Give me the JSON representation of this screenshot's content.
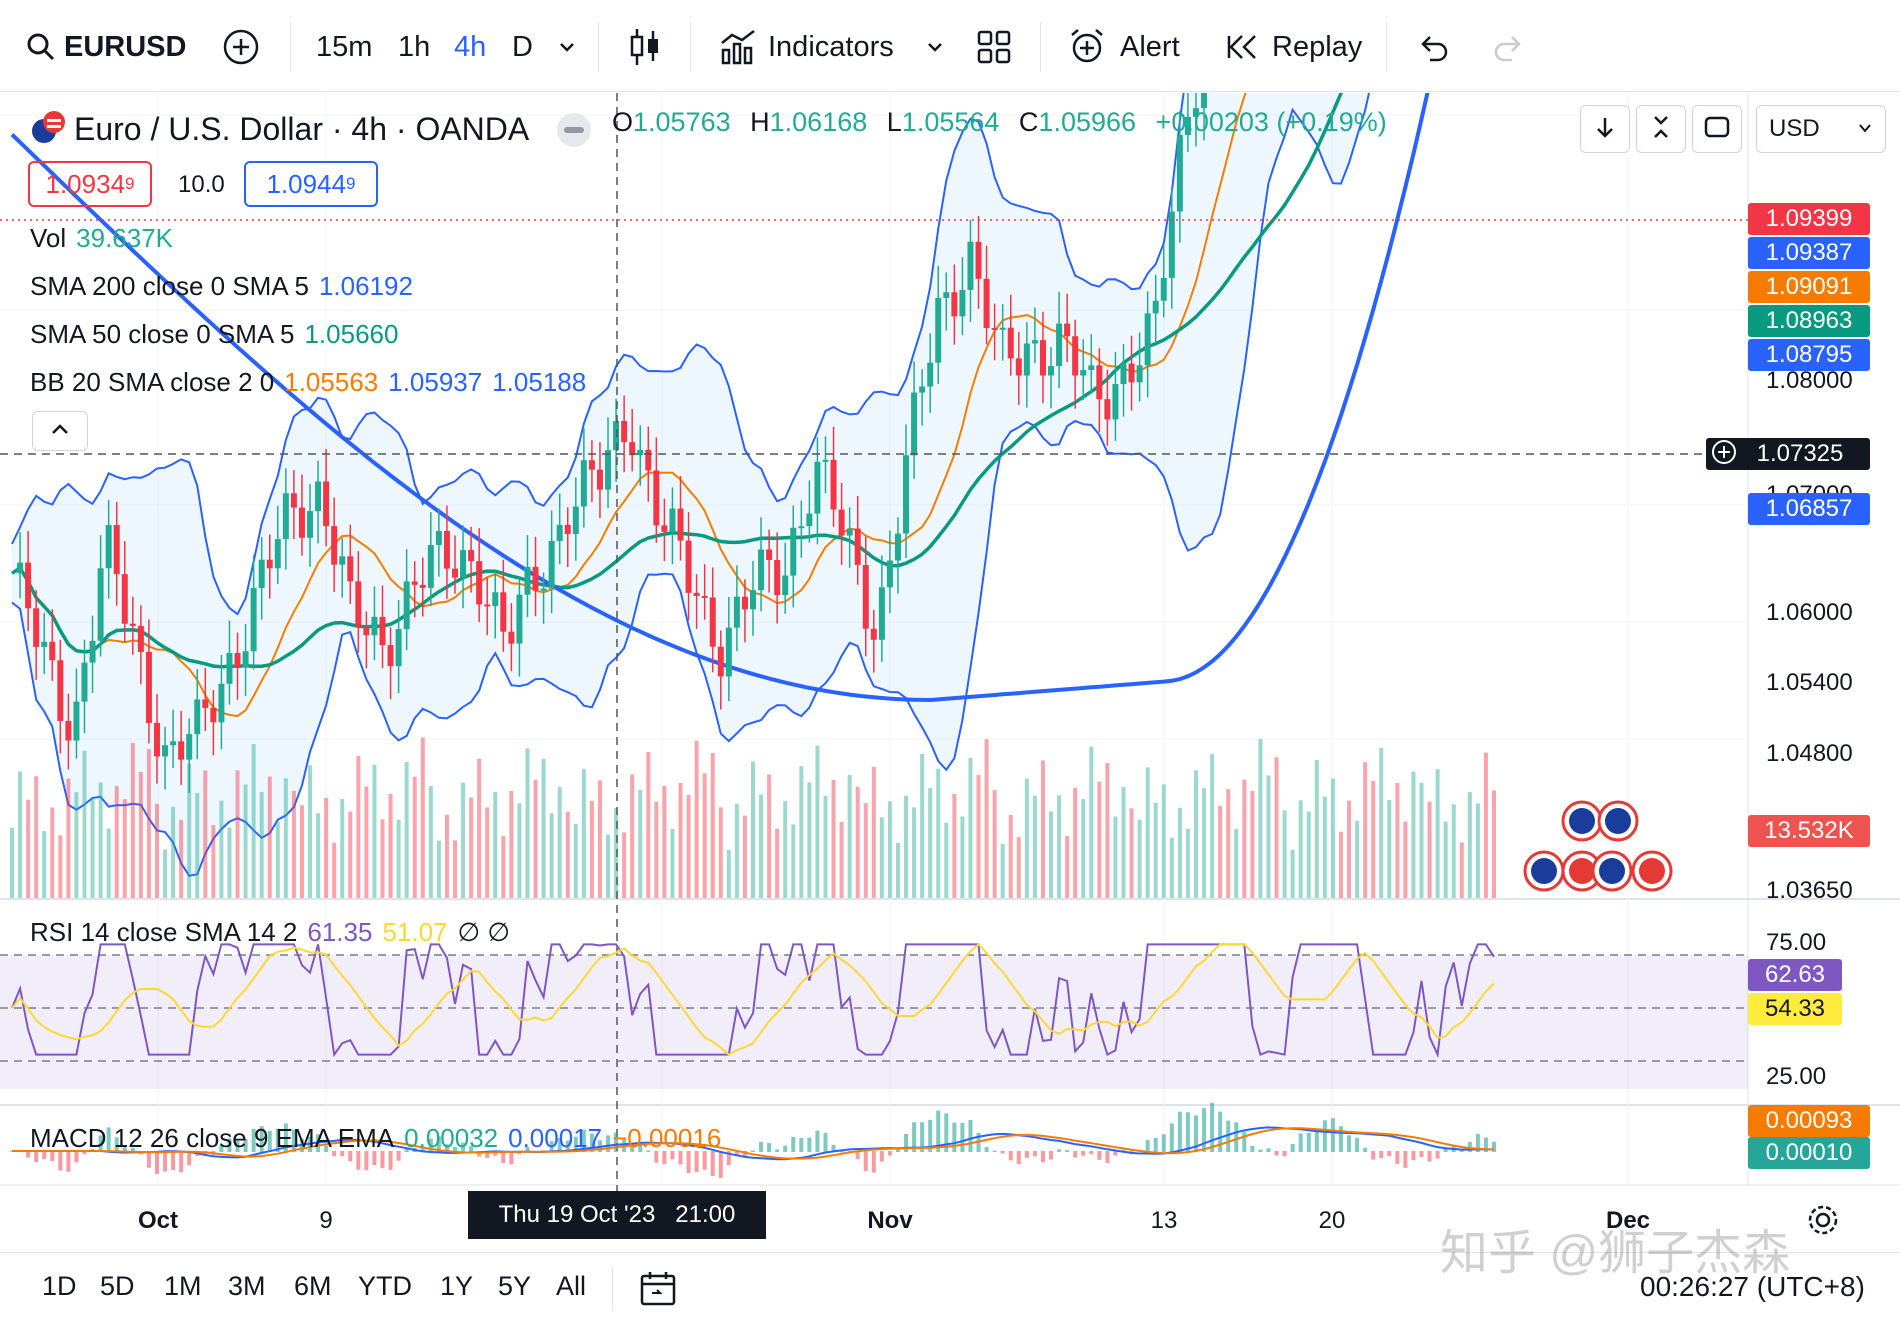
{
  "toolbar": {
    "symbol": "EURUSD",
    "intervals": [
      "15m",
      "1h",
      "4h",
      "D"
    ],
    "active_interval": "4h",
    "indicators_label": "Indicators",
    "alert_label": "Alert",
    "replay_label": "Replay"
  },
  "header": {
    "title": "Euro / U.S. Dollar · 4h · OANDA",
    "ohlc": {
      "o_label": "O",
      "o": "1.05763",
      "h_label": "H",
      "h": "1.06168",
      "l_label": "L",
      "l": "1.05564",
      "c_label": "C",
      "c": "1.05966",
      "change": "+0.00203 (+0.19%)"
    },
    "sell_price_main": "1.0934",
    "sell_price_sup": "9",
    "spread": "10.0",
    "buy_price_main": "1.0944",
    "buy_price_sup": "9",
    "currency": "USD"
  },
  "legend": {
    "vol_label": "Vol",
    "vol_value": "39.637K",
    "sma200_label": "SMA 200 close 0 SMA 5",
    "sma200_value": "1.06192",
    "sma50_label": "SMA 50 close 0 SMA 5",
    "sma50_value": "1.05660",
    "bb_label": "BB 20 SMA close 2 0",
    "bb_basis": "1.05563",
    "bb_upper": "1.05937",
    "bb_lower": "1.05188"
  },
  "price_axis": {
    "ticks": [
      "1.08000",
      "1.07000",
      "1.06000",
      "1.05400",
      "1.04800",
      "1.03650"
    ],
    "badges": {
      "last": "1.09399",
      "bb_upper": "1.09387",
      "bb_basis": "1.09091",
      "sma50": "1.08963",
      "bb_lower": "1.08795",
      "crosshair": "1.07325",
      "sma200": "1.06857",
      "volume": "13.532K"
    }
  },
  "rsi": {
    "label": "RSI 14 close SMA 14 2",
    "value": "61.35",
    "sma_value": "51.07",
    "flags": "∅ ∅",
    "ticks": [
      "75.00",
      "25.00"
    ],
    "badge_rsi": "62.63",
    "badge_sma": "54.33"
  },
  "macd": {
    "label": "MACD 12 26 close 9 EMA EMA",
    "hist": "0.00032",
    "macd": "0.00017",
    "signal": "−0.00016",
    "badge_signal": "0.00093",
    "badge_macd": "0.00010"
  },
  "time_axis": {
    "labels": [
      "Oct",
      "9",
      "Nov",
      "13",
      "20",
      "Dec"
    ],
    "crosshair_label": "Thu 19 Oct '23   21:00"
  },
  "bottom": {
    "ranges": [
      "1D",
      "5D",
      "1M",
      "3M",
      "6M",
      "YTD",
      "1Y",
      "5Y",
      "All"
    ],
    "clock": "00:26:27 (UTC+8)",
    "watermark": "知乎 @狮子杰森"
  },
  "colors": {
    "up": "#22ab94",
    "down": "#f23645",
    "sma200": "#2962ff",
    "sma50": "#089981",
    "bb_basis": "#f57c00",
    "bb_band": "#2a62ff",
    "rsi": "#7e57c2",
    "rsi_sma": "#fdd835"
  },
  "chart_data": {
    "type": "candlestick",
    "series_close_approx": [
      1.0565,
      1.052,
      1.049,
      1.0575,
      1.053,
      1.047,
      1.048,
      1.052,
      1.0555,
      1.0595,
      1.061,
      1.054,
      1.053,
      1.056,
      1.057,
      1.0575,
      1.0525,
      1.0565,
      1.06,
      1.061,
      1.065,
      1.059,
      1.056,
      1.053,
      1.0555,
      1.057,
      1.062,
      1.058,
      1.054,
      1.062,
      1.07,
      1.073,
      1.067,
      1.0685,
      1.068,
      1.0655,
      1.067,
      1.0685,
      1.08,
      1.087,
      1.084,
      1.084,
      1.09,
      1.096,
      1.091,
      1.088,
      1.09,
      1.091,
      1.094
    ],
    "price_ticks": [
      1.08,
      1.07,
      1.06,
      1.054,
      1.048,
      1.0365
    ],
    "rsi_range": [
      25,
      75
    ]
  }
}
